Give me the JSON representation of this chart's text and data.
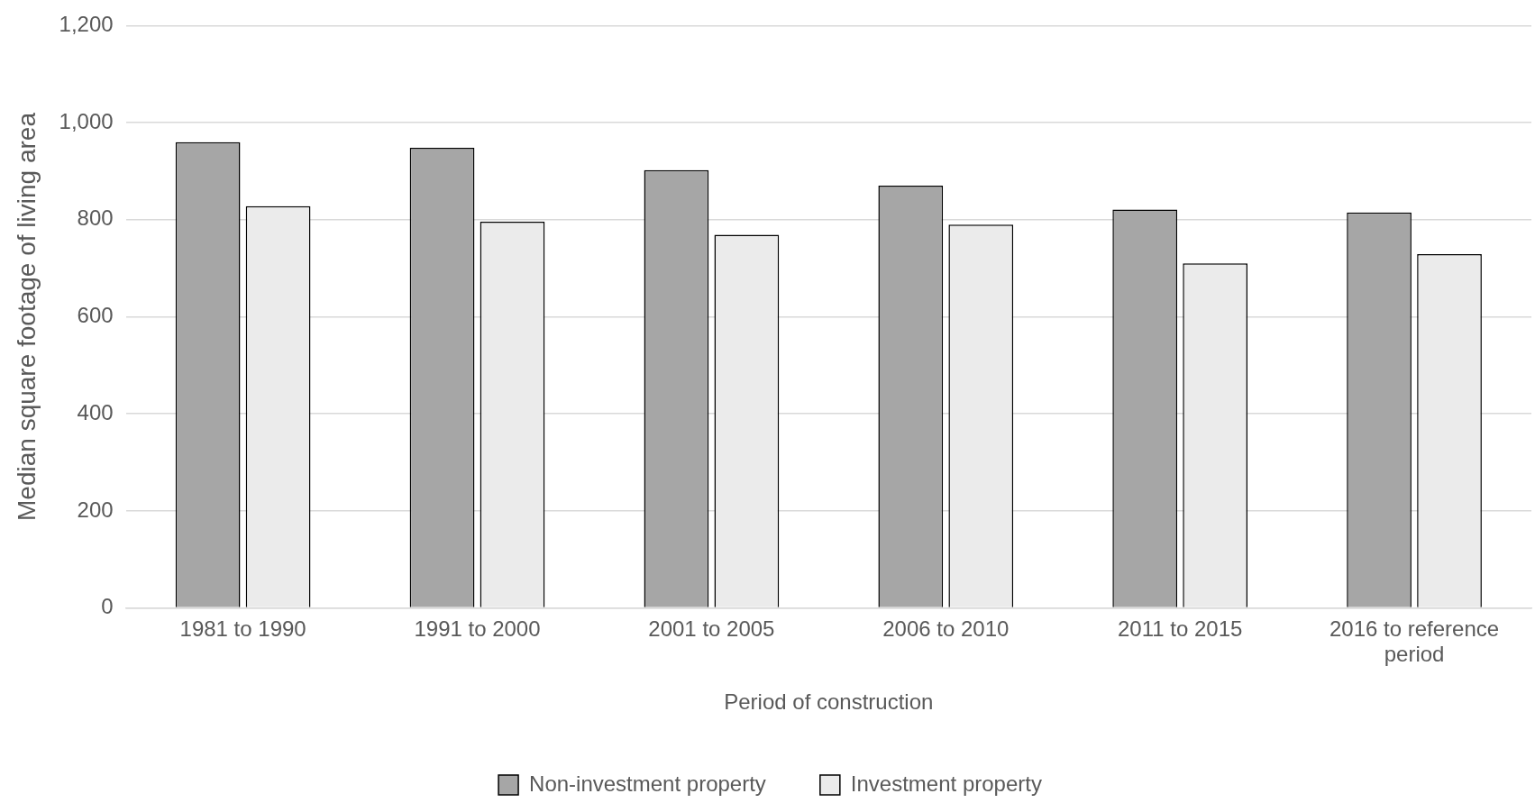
{
  "chart_data": {
    "type": "bar",
    "xlabel": "Period of construction",
    "ylabel": "Median square footage of living area",
    "categories": [
      "1981 to 1990",
      "1991 to 2000",
      "2001 to 2005",
      "2006 to 2010",
      "2011 to 2015",
      "2016 to reference period"
    ],
    "series": [
      {
        "name": "Non-investment property",
        "color": "#a6a6a6",
        "values": [
          960,
          948,
          902,
          870,
          821,
          815
        ]
      },
      {
        "name": "Investment property",
        "color": "#ebebeb",
        "values": [
          828,
          796,
          769,
          790,
          710,
          729
        ]
      }
    ],
    "ylim": [
      0,
      1200
    ],
    "yticks": [
      {
        "value": 0,
        "label": "0"
      },
      {
        "value": 200,
        "label": "200"
      },
      {
        "value": 400,
        "label": "400"
      },
      {
        "value": 600,
        "label": "600"
      },
      {
        "value": 800,
        "label": "800"
      },
      {
        "value": 1000,
        "label": "1,000"
      },
      {
        "value": 1200,
        "label": "1,200"
      }
    ],
    "grid": "y",
    "legend": "bottom"
  }
}
